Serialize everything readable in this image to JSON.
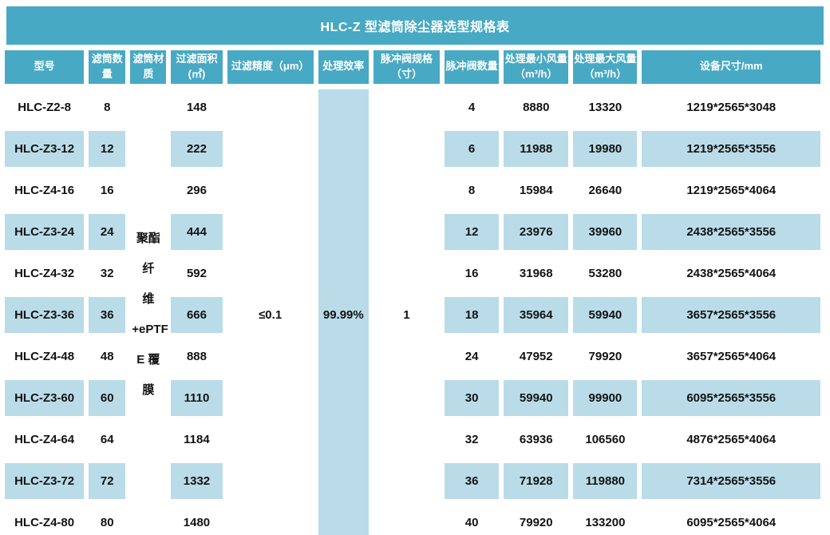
{
  "title": "HLC-Z 型滤筒除尘器选型规格表",
  "colors": {
    "header_bg": "#48A9C4",
    "stripe_bg": "#B9DCE8",
    "header_text": "#FFFFFF",
    "body_text": "#131313"
  },
  "columns": [
    {
      "key": "model",
      "label": "型号"
    },
    {
      "key": "cartridge_qty",
      "label": "滤筒数\n量"
    },
    {
      "key": "material",
      "label": "滤筒材\n质"
    },
    {
      "key": "filter_area",
      "label": "过滤面积\n(㎡)"
    },
    {
      "key": "precision",
      "label": "过滤精度（μm）"
    },
    {
      "key": "efficiency",
      "label": "处理效率"
    },
    {
      "key": "valve_spec",
      "label": "脉冲阀规格\n（寸）"
    },
    {
      "key": "valve_qty",
      "label": "脉冲阀数量"
    },
    {
      "key": "min_airflow",
      "label": "处理最小风量\n（m³/h）"
    },
    {
      "key": "max_airflow",
      "label": "处理最大风量\n（m³/h）"
    },
    {
      "key": "size",
      "label": "设备尺寸/mm"
    }
  ],
  "merged": {
    "material_lines": [
      "聚酯纤",
      "维",
      "+ePTF",
      "E 覆膜"
    ],
    "filter_precision": "≤0.1",
    "efficiency": "99.99%",
    "valve_spec": "1"
  },
  "rows": [
    {
      "model": "HLC-Z2-8",
      "cartridge_qty": "8",
      "filter_area": "148",
      "valve_qty": "4",
      "min_airflow": "8880",
      "max_airflow": "13320",
      "size": "1219*2565*3048"
    },
    {
      "model": "HLC-Z3-12",
      "cartridge_qty": "12",
      "filter_area": "222",
      "valve_qty": "6",
      "min_airflow": "11988",
      "max_airflow": "19980",
      "size": "1219*2565*3556"
    },
    {
      "model": "HLC-Z4-16",
      "cartridge_qty": "16",
      "filter_area": "296",
      "valve_qty": "8",
      "min_airflow": "15984",
      "max_airflow": "26640",
      "size": "1219*2565*4064"
    },
    {
      "model": "HLC-Z3-24",
      "cartridge_qty": "24",
      "filter_area": "444",
      "valve_qty": "12",
      "min_airflow": "23976",
      "max_airflow": "39960",
      "size": "2438*2565*3556"
    },
    {
      "model": "HLC-Z4-32",
      "cartridge_qty": "32",
      "filter_area": "592",
      "valve_qty": "16",
      "min_airflow": "31968",
      "max_airflow": "53280",
      "size": "2438*2565*4064"
    },
    {
      "model": "HLC-Z3-36",
      "cartridge_qty": "36",
      "filter_area": "666",
      "valve_qty": "18",
      "min_airflow": "35964",
      "max_airflow": "59940",
      "size": "3657*2565*3556"
    },
    {
      "model": "HLC-Z4-48",
      "cartridge_qty": "48",
      "filter_area": "888",
      "valve_qty": "24",
      "min_airflow": "47952",
      "max_airflow": "79920",
      "size": "3657*2565*4064"
    },
    {
      "model": "HLC-Z3-60",
      "cartridge_qty": "60",
      "filter_area": "1110",
      "valve_qty": "30",
      "min_airflow": "59940",
      "max_airflow": "99900",
      "size": "6095*2565*3556"
    },
    {
      "model": "HLC-Z4-64",
      "cartridge_qty": "64",
      "filter_area": "1184",
      "valve_qty": "32",
      "min_airflow": "63936",
      "max_airflow": "106560",
      "size": "4876*2565*4064"
    },
    {
      "model": "HLC-Z3-72",
      "cartridge_qty": "72",
      "filter_area": "1332",
      "valve_qty": "36",
      "min_airflow": "71928",
      "max_airflow": "119880",
      "size": "7314*2565*3556"
    },
    {
      "model": "HLC-Z4-80",
      "cartridge_qty": "80",
      "filter_area": "1480",
      "valve_qty": "40",
      "min_airflow": "79920",
      "max_airflow": "133200",
      "size": "6095*2565*4064"
    }
  ],
  "striped_row_indices": [
    1,
    3,
    5,
    7,
    9
  ]
}
